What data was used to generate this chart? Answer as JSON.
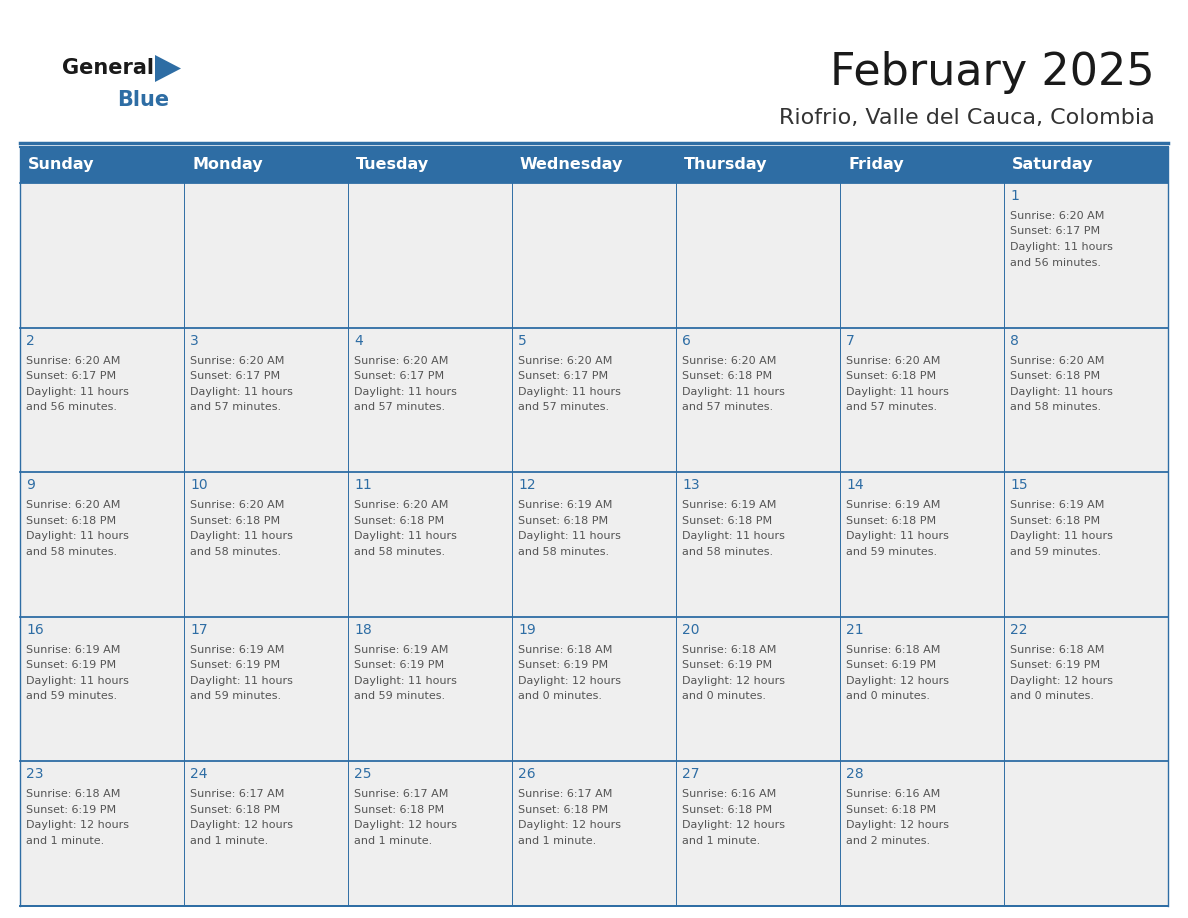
{
  "title": "February 2025",
  "subtitle": "Riofrio, Valle del Cauca, Colombia",
  "header_bg_color": "#2E6DA4",
  "header_text_color": "#FFFFFF",
  "cell_bg_color": "#EFEFEF",
  "text_color": "#555555",
  "day_number_color": "#2E6DA4",
  "border_color": "#2E6DA4",
  "days_of_week": [
    "Sunday",
    "Monday",
    "Tuesday",
    "Wednesday",
    "Thursday",
    "Friday",
    "Saturday"
  ],
  "weeks": [
    [
      {
        "day": "",
        "info": ""
      },
      {
        "day": "",
        "info": ""
      },
      {
        "day": "",
        "info": ""
      },
      {
        "day": "",
        "info": ""
      },
      {
        "day": "",
        "info": ""
      },
      {
        "day": "",
        "info": ""
      },
      {
        "day": "1",
        "info": "Sunrise: 6:20 AM\nSunset: 6:17 PM\nDaylight: 11 hours\nand 56 minutes."
      }
    ],
    [
      {
        "day": "2",
        "info": "Sunrise: 6:20 AM\nSunset: 6:17 PM\nDaylight: 11 hours\nand 56 minutes."
      },
      {
        "day": "3",
        "info": "Sunrise: 6:20 AM\nSunset: 6:17 PM\nDaylight: 11 hours\nand 57 minutes."
      },
      {
        "day": "4",
        "info": "Sunrise: 6:20 AM\nSunset: 6:17 PM\nDaylight: 11 hours\nand 57 minutes."
      },
      {
        "day": "5",
        "info": "Sunrise: 6:20 AM\nSunset: 6:17 PM\nDaylight: 11 hours\nand 57 minutes."
      },
      {
        "day": "6",
        "info": "Sunrise: 6:20 AM\nSunset: 6:18 PM\nDaylight: 11 hours\nand 57 minutes."
      },
      {
        "day": "7",
        "info": "Sunrise: 6:20 AM\nSunset: 6:18 PM\nDaylight: 11 hours\nand 57 minutes."
      },
      {
        "day": "8",
        "info": "Sunrise: 6:20 AM\nSunset: 6:18 PM\nDaylight: 11 hours\nand 58 minutes."
      }
    ],
    [
      {
        "day": "9",
        "info": "Sunrise: 6:20 AM\nSunset: 6:18 PM\nDaylight: 11 hours\nand 58 minutes."
      },
      {
        "day": "10",
        "info": "Sunrise: 6:20 AM\nSunset: 6:18 PM\nDaylight: 11 hours\nand 58 minutes."
      },
      {
        "day": "11",
        "info": "Sunrise: 6:20 AM\nSunset: 6:18 PM\nDaylight: 11 hours\nand 58 minutes."
      },
      {
        "day": "12",
        "info": "Sunrise: 6:19 AM\nSunset: 6:18 PM\nDaylight: 11 hours\nand 58 minutes."
      },
      {
        "day": "13",
        "info": "Sunrise: 6:19 AM\nSunset: 6:18 PM\nDaylight: 11 hours\nand 58 minutes."
      },
      {
        "day": "14",
        "info": "Sunrise: 6:19 AM\nSunset: 6:18 PM\nDaylight: 11 hours\nand 59 minutes."
      },
      {
        "day": "15",
        "info": "Sunrise: 6:19 AM\nSunset: 6:18 PM\nDaylight: 11 hours\nand 59 minutes."
      }
    ],
    [
      {
        "day": "16",
        "info": "Sunrise: 6:19 AM\nSunset: 6:19 PM\nDaylight: 11 hours\nand 59 minutes."
      },
      {
        "day": "17",
        "info": "Sunrise: 6:19 AM\nSunset: 6:19 PM\nDaylight: 11 hours\nand 59 minutes."
      },
      {
        "day": "18",
        "info": "Sunrise: 6:19 AM\nSunset: 6:19 PM\nDaylight: 11 hours\nand 59 minutes."
      },
      {
        "day": "19",
        "info": "Sunrise: 6:18 AM\nSunset: 6:19 PM\nDaylight: 12 hours\nand 0 minutes."
      },
      {
        "day": "20",
        "info": "Sunrise: 6:18 AM\nSunset: 6:19 PM\nDaylight: 12 hours\nand 0 minutes."
      },
      {
        "day": "21",
        "info": "Sunrise: 6:18 AM\nSunset: 6:19 PM\nDaylight: 12 hours\nand 0 minutes."
      },
      {
        "day": "22",
        "info": "Sunrise: 6:18 AM\nSunset: 6:19 PM\nDaylight: 12 hours\nand 0 minutes."
      }
    ],
    [
      {
        "day": "23",
        "info": "Sunrise: 6:18 AM\nSunset: 6:19 PM\nDaylight: 12 hours\nand 1 minute."
      },
      {
        "day": "24",
        "info": "Sunrise: 6:17 AM\nSunset: 6:18 PM\nDaylight: 12 hours\nand 1 minute."
      },
      {
        "day": "25",
        "info": "Sunrise: 6:17 AM\nSunset: 6:18 PM\nDaylight: 12 hours\nand 1 minute."
      },
      {
        "day": "26",
        "info": "Sunrise: 6:17 AM\nSunset: 6:18 PM\nDaylight: 12 hours\nand 1 minute."
      },
      {
        "day": "27",
        "info": "Sunrise: 6:16 AM\nSunset: 6:18 PM\nDaylight: 12 hours\nand 1 minute."
      },
      {
        "day": "28",
        "info": "Sunrise: 6:16 AM\nSunset: 6:18 PM\nDaylight: 12 hours\nand 2 minutes."
      },
      {
        "day": "",
        "info": ""
      }
    ]
  ],
  "header_fontsize": 11.5,
  "day_number_fontsize": 10,
  "info_fontsize": 8.0,
  "title_fontsize": 32,
  "subtitle_fontsize": 16,
  "logo_general_fontsize": 15,
  "logo_blue_fontsize": 15,
  "fig_width": 11.88,
  "fig_height": 9.18,
  "dpi": 100
}
